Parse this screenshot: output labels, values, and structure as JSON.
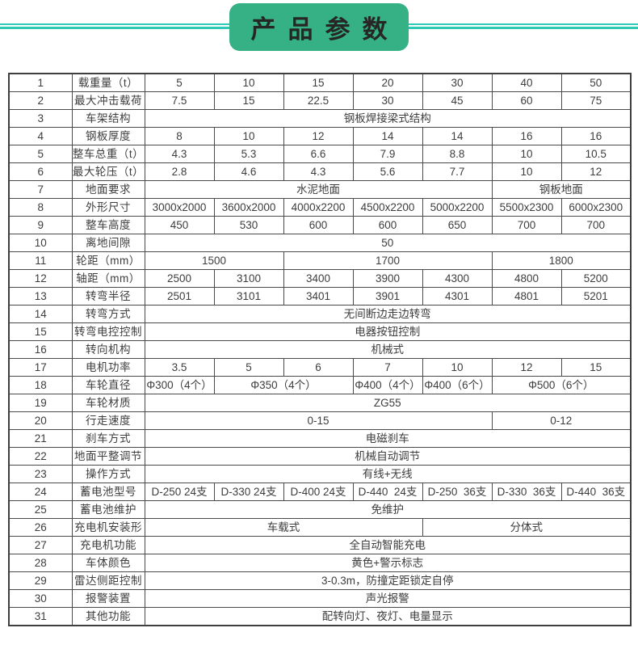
{
  "header": {
    "title": "产品参数",
    "badge_color": "#35b185",
    "line_color": "#2cc9b7"
  },
  "table": {
    "border_color": "#4a4a4a",
    "rows": [
      {
        "num": "1",
        "label": "载重量（t）",
        "cells": [
          {
            "t": "5",
            "s": 1
          },
          {
            "t": "10",
            "s": 1
          },
          {
            "t": "15",
            "s": 1
          },
          {
            "t": "20",
            "s": 1
          },
          {
            "t": "30",
            "s": 1
          },
          {
            "t": "40",
            "s": 1
          },
          {
            "t": "50",
            "s": 1
          }
        ]
      },
      {
        "num": "2",
        "label": "最大冲击载荷",
        "cells": [
          {
            "t": "7.5",
            "s": 1
          },
          {
            "t": "15",
            "s": 1
          },
          {
            "t": "22.5",
            "s": 1
          },
          {
            "t": "30",
            "s": 1
          },
          {
            "t": "45",
            "s": 1
          },
          {
            "t": "60",
            "s": 1
          },
          {
            "t": "75",
            "s": 1
          }
        ]
      },
      {
        "num": "3",
        "label": "车架结构",
        "cells": [
          {
            "t": "钢板焊接梁式结构",
            "s": 7
          }
        ]
      },
      {
        "num": "4",
        "label": "钢板厚度",
        "cells": [
          {
            "t": "8",
            "s": 1
          },
          {
            "t": "10",
            "s": 1
          },
          {
            "t": "12",
            "s": 1
          },
          {
            "t": "14",
            "s": 1
          },
          {
            "t": "14",
            "s": 1
          },
          {
            "t": "16",
            "s": 1
          },
          {
            "t": "16",
            "s": 1
          }
        ]
      },
      {
        "num": "5",
        "label": "整车总重（t）",
        "cells": [
          {
            "t": "4.3",
            "s": 1
          },
          {
            "t": "5.3",
            "s": 1
          },
          {
            "t": "6.6",
            "s": 1
          },
          {
            "t": "7.9",
            "s": 1
          },
          {
            "t": "8.8",
            "s": 1
          },
          {
            "t": "10",
            "s": 1
          },
          {
            "t": "10.5",
            "s": 1
          }
        ]
      },
      {
        "num": "6",
        "label": "最大轮压（t）",
        "cells": [
          {
            "t": "2.8",
            "s": 1
          },
          {
            "t": "4.6",
            "s": 1
          },
          {
            "t": "4.3",
            "s": 1
          },
          {
            "t": "5.6",
            "s": 1
          },
          {
            "t": "7.7",
            "s": 1
          },
          {
            "t": "10",
            "s": 1
          },
          {
            "t": "12",
            "s": 1
          }
        ]
      },
      {
        "num": "7",
        "label": "地面要求",
        "cells": [
          {
            "t": "水泥地面",
            "s": 5
          },
          {
            "t": "钢板地面",
            "s": 2
          }
        ]
      },
      {
        "num": "8",
        "label": "外形尺寸",
        "cells": [
          {
            "t": "3000x2000",
            "s": 1
          },
          {
            "t": "3600x2000",
            "s": 1
          },
          {
            "t": "4000x2200",
            "s": 1
          },
          {
            "t": "4500x2200",
            "s": 1
          },
          {
            "t": "5000x2200",
            "s": 1
          },
          {
            "t": "5500x2300",
            "s": 1
          },
          {
            "t": "6000x2300",
            "s": 1
          }
        ]
      },
      {
        "num": "9",
        "label": "整车高度",
        "cells": [
          {
            "t": "450",
            "s": 1
          },
          {
            "t": "530",
            "s": 1
          },
          {
            "t": "600",
            "s": 1
          },
          {
            "t": "600",
            "s": 1
          },
          {
            "t": "650",
            "s": 1
          },
          {
            "t": "700",
            "s": 1
          },
          {
            "t": "700",
            "s": 1
          }
        ]
      },
      {
        "num": "10",
        "label": "离地间隙",
        "cells": [
          {
            "t": "50",
            "s": 7
          }
        ]
      },
      {
        "num": "11",
        "label": "轮距（mm）",
        "cells": [
          {
            "t": "1500",
            "s": 2
          },
          {
            "t": "1700",
            "s": 3
          },
          {
            "t": "1800",
            "s": 2
          }
        ]
      },
      {
        "num": "12",
        "label": "轴距（mm）",
        "cells": [
          {
            "t": "2500",
            "s": 1
          },
          {
            "t": "3100",
            "s": 1
          },
          {
            "t": "3400",
            "s": 1
          },
          {
            "t": "3900",
            "s": 1
          },
          {
            "t": "4300",
            "s": 1
          },
          {
            "t": "4800",
            "s": 1
          },
          {
            "t": "5200",
            "s": 1
          }
        ]
      },
      {
        "num": "13",
        "label": "转弯半径",
        "cells": [
          {
            "t": "2501",
            "s": 1
          },
          {
            "t": "3101",
            "s": 1
          },
          {
            "t": "3401",
            "s": 1
          },
          {
            "t": "3901",
            "s": 1
          },
          {
            "t": "4301",
            "s": 1
          },
          {
            "t": "4801",
            "s": 1
          },
          {
            "t": "5201",
            "s": 1
          }
        ]
      },
      {
        "num": "14",
        "label": "转弯方式",
        "cells": [
          {
            "t": "无间断边走边转弯",
            "s": 7
          }
        ]
      },
      {
        "num": "15",
        "label": "转弯电控控制",
        "cells": [
          {
            "t": "电器按钮控制",
            "s": 7
          }
        ]
      },
      {
        "num": "16",
        "label": "转向机构",
        "cells": [
          {
            "t": "机械式",
            "s": 7
          }
        ]
      },
      {
        "num": "17",
        "label": "电机功率",
        "cells": [
          {
            "t": "3.5",
            "s": 1
          },
          {
            "t": "5",
            "s": 1
          },
          {
            "t": "6",
            "s": 1
          },
          {
            "t": "7",
            "s": 1
          },
          {
            "t": "10",
            "s": 1
          },
          {
            "t": "12",
            "s": 1
          },
          {
            "t": "15",
            "s": 1
          }
        ]
      },
      {
        "num": "18",
        "label": "车轮直径",
        "cells": [
          {
            "t": "Φ300（4个）",
            "s": 1
          },
          {
            "t": "Φ350（4个）",
            "s": 2
          },
          {
            "t": "Φ400（4个）",
            "s": 1
          },
          {
            "t": "Φ400（6个）",
            "s": 1
          },
          {
            "t": "Φ500（6个）",
            "s": 2
          }
        ]
      },
      {
        "num": "19",
        "label": "车轮材质",
        "cells": [
          {
            "t": "ZG55",
            "s": 7
          }
        ]
      },
      {
        "num": "20",
        "label": "行走速度",
        "cells": [
          {
            "t": "0-15",
            "s": 5
          },
          {
            "t": "0-12",
            "s": 2
          }
        ]
      },
      {
        "num": "21",
        "label": "刹车方式",
        "cells": [
          {
            "t": "电磁刹车",
            "s": 7
          }
        ]
      },
      {
        "num": "22",
        "label": "地面平整调节",
        "cells": [
          {
            "t": "机械自动调节",
            "s": 7
          }
        ]
      },
      {
        "num": "23",
        "label": "操作方式",
        "cells": [
          {
            "t": "有线+无线",
            "s": 7
          }
        ]
      },
      {
        "num": "24",
        "label": "蓄电池型号",
        "cells": [
          {
            "t": "D-250 24支",
            "s": 1
          },
          {
            "t": "D-330 24支",
            "s": 1
          },
          {
            "t": "D-400 24支",
            "s": 1
          },
          {
            "t": "D-440  24支",
            "s": 1
          },
          {
            "t": "D-250  36支",
            "s": 1
          },
          {
            "t": "D-330  36支",
            "s": 1
          },
          {
            "t": "D-440  36支",
            "s": 1
          }
        ]
      },
      {
        "num": "25",
        "label": "蓄电池维护",
        "cells": [
          {
            "t": "免维护",
            "s": 7
          }
        ]
      },
      {
        "num": "26",
        "label": "充电机安装形",
        "cells": [
          {
            "t": "车载式",
            "s": 4
          },
          {
            "t": "分体式",
            "s": 3
          }
        ]
      },
      {
        "num": "27",
        "label": "充电机功能",
        "cells": [
          {
            "t": "全自动智能充电",
            "s": 7
          }
        ]
      },
      {
        "num": "28",
        "label": "车体颜色",
        "cells": [
          {
            "t": "黄色+警示标志",
            "s": 7
          }
        ]
      },
      {
        "num": "29",
        "label": "雷达侧距控制",
        "cells": [
          {
            "t": "3-0.3m，防撞定距锁定自停",
            "s": 7
          }
        ]
      },
      {
        "num": "30",
        "label": "报警装置",
        "cells": [
          {
            "t": "声光报警",
            "s": 7
          }
        ]
      },
      {
        "num": "31",
        "label": "其他功能",
        "cells": [
          {
            "t": "配转向灯、夜灯、电量显示",
            "s": 7
          }
        ]
      }
    ]
  }
}
